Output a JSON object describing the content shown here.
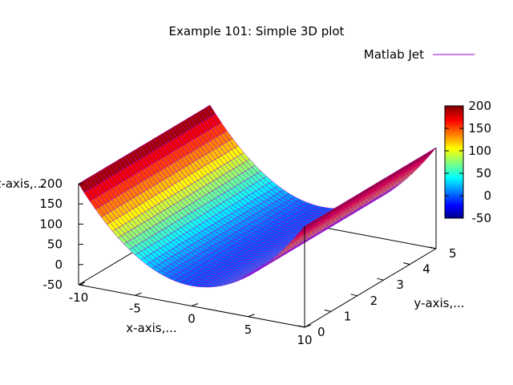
{
  "chart_data": {
    "type": "surface",
    "title": "Example 101: Simple 3D plot",
    "xlabel": "x-axis,...",
    "ylabel": "y-axis,...",
    "zlabel": "z-axis,...",
    "legend": {
      "label": "Matlab Jet",
      "position": "top-right"
    },
    "xlim": [
      -10,
      10
    ],
    "ylim": [
      0,
      5
    ],
    "zlim": [
      -50,
      200
    ],
    "x_ticks": [
      -10,
      -5,
      0,
      5,
      10
    ],
    "y_ticks": [
      0,
      1,
      2,
      3,
      4,
      5
    ],
    "z_ticks": [
      -50,
      0,
      50,
      100,
      150,
      200
    ],
    "colorbar": {
      "palette": "Matlab Jet",
      "ticks": [
        -50,
        0,
        50,
        100,
        150,
        200
      ],
      "range": [
        -50,
        200
      ],
      "colors": [
        "#00008f",
        "#0000ff",
        "#00ffff",
        "#ffff00",
        "#ff0000",
        "#800000"
      ]
    },
    "surface": {
      "function": "z = 2*x^2",
      "x_samples": 41,
      "y_samples": 41
    }
  }
}
